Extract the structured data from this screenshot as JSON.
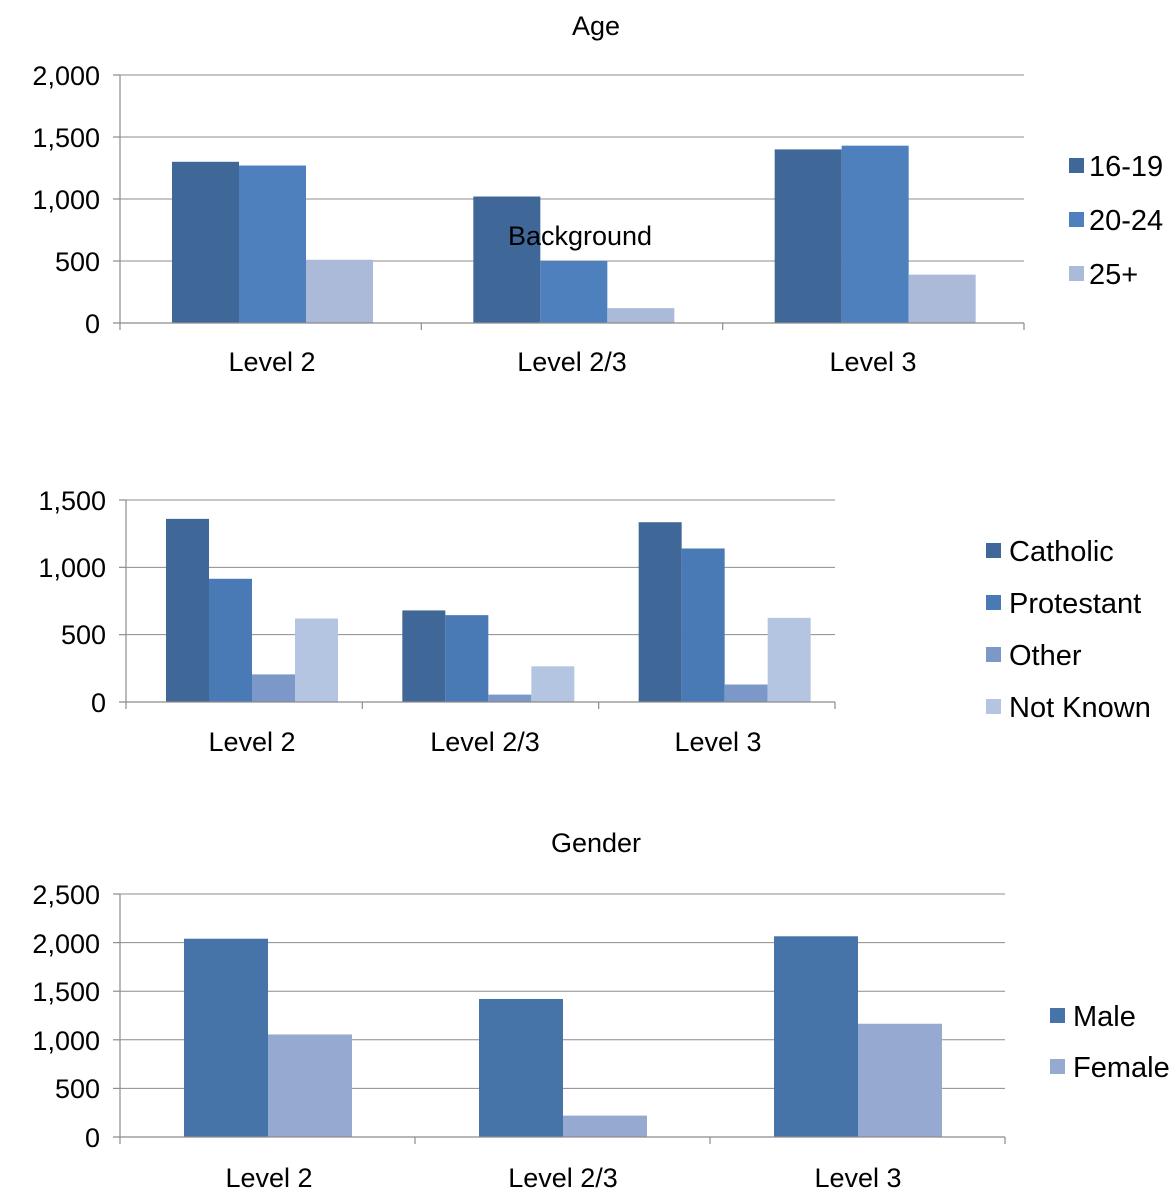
{
  "chart_data": [
    {
      "type": "bar",
      "title": "Age",
      "categories": [
        "Level 2",
        "Level 2/3",
        "Level 3"
      ],
      "series": [
        {
          "name": "16-19",
          "values": [
            1300,
            1020,
            1400
          ],
          "color": "#3f6797"
        },
        {
          "name": "20-24",
          "values": [
            1270,
            500,
            1430
          ],
          "color": "#4e80bd"
        },
        {
          "name": "25+",
          "values": [
            510,
            120,
            390
          ],
          "color": "#aabad8"
        }
      ],
      "yticks": [
        "0",
        "500",
        "1,000",
        "1,500",
        "2,000"
      ],
      "ylim": [
        0,
        2000
      ],
      "grid": true,
      "legend": "right"
    },
    {
      "type": "bar",
      "title": "Background",
      "categories": [
        "Level 2",
        "Level 2/3",
        "Level 3"
      ],
      "series": [
        {
          "name": "Catholic",
          "values": [
            1360,
            680,
            1335
          ],
          "color": "#3f6797"
        },
        {
          "name": "Protestant",
          "values": [
            915,
            645,
            1140
          ],
          "color": "#4a7ab5"
        },
        {
          "name": "Other",
          "values": [
            205,
            55,
            130
          ],
          "color": "#7c98c8"
        },
        {
          "name": "Not Known",
          "values": [
            620,
            265,
            625
          ],
          "color": "#b4c5e2"
        }
      ],
      "yticks": [
        "0",
        "500",
        "1,000",
        "1,500"
      ],
      "ylim": [
        0,
        1500
      ],
      "grid": true,
      "legend": "right"
    },
    {
      "type": "bar",
      "title": "Gender",
      "categories": [
        "Level 2",
        "Level 2/3",
        "Level 3"
      ],
      "series": [
        {
          "name": "Male",
          "values": [
            2040,
            1420,
            2065
          ],
          "color": "#4774a8"
        },
        {
          "name": "Female",
          "values": [
            1055,
            220,
            1165
          ],
          "color": "#95a9d1"
        }
      ],
      "yticks": [
        "0",
        "500",
        "1,000",
        "1,500",
        "2,000",
        "2,500"
      ],
      "ylim": [
        0,
        2500
      ],
      "grid": true,
      "legend": "right"
    }
  ]
}
